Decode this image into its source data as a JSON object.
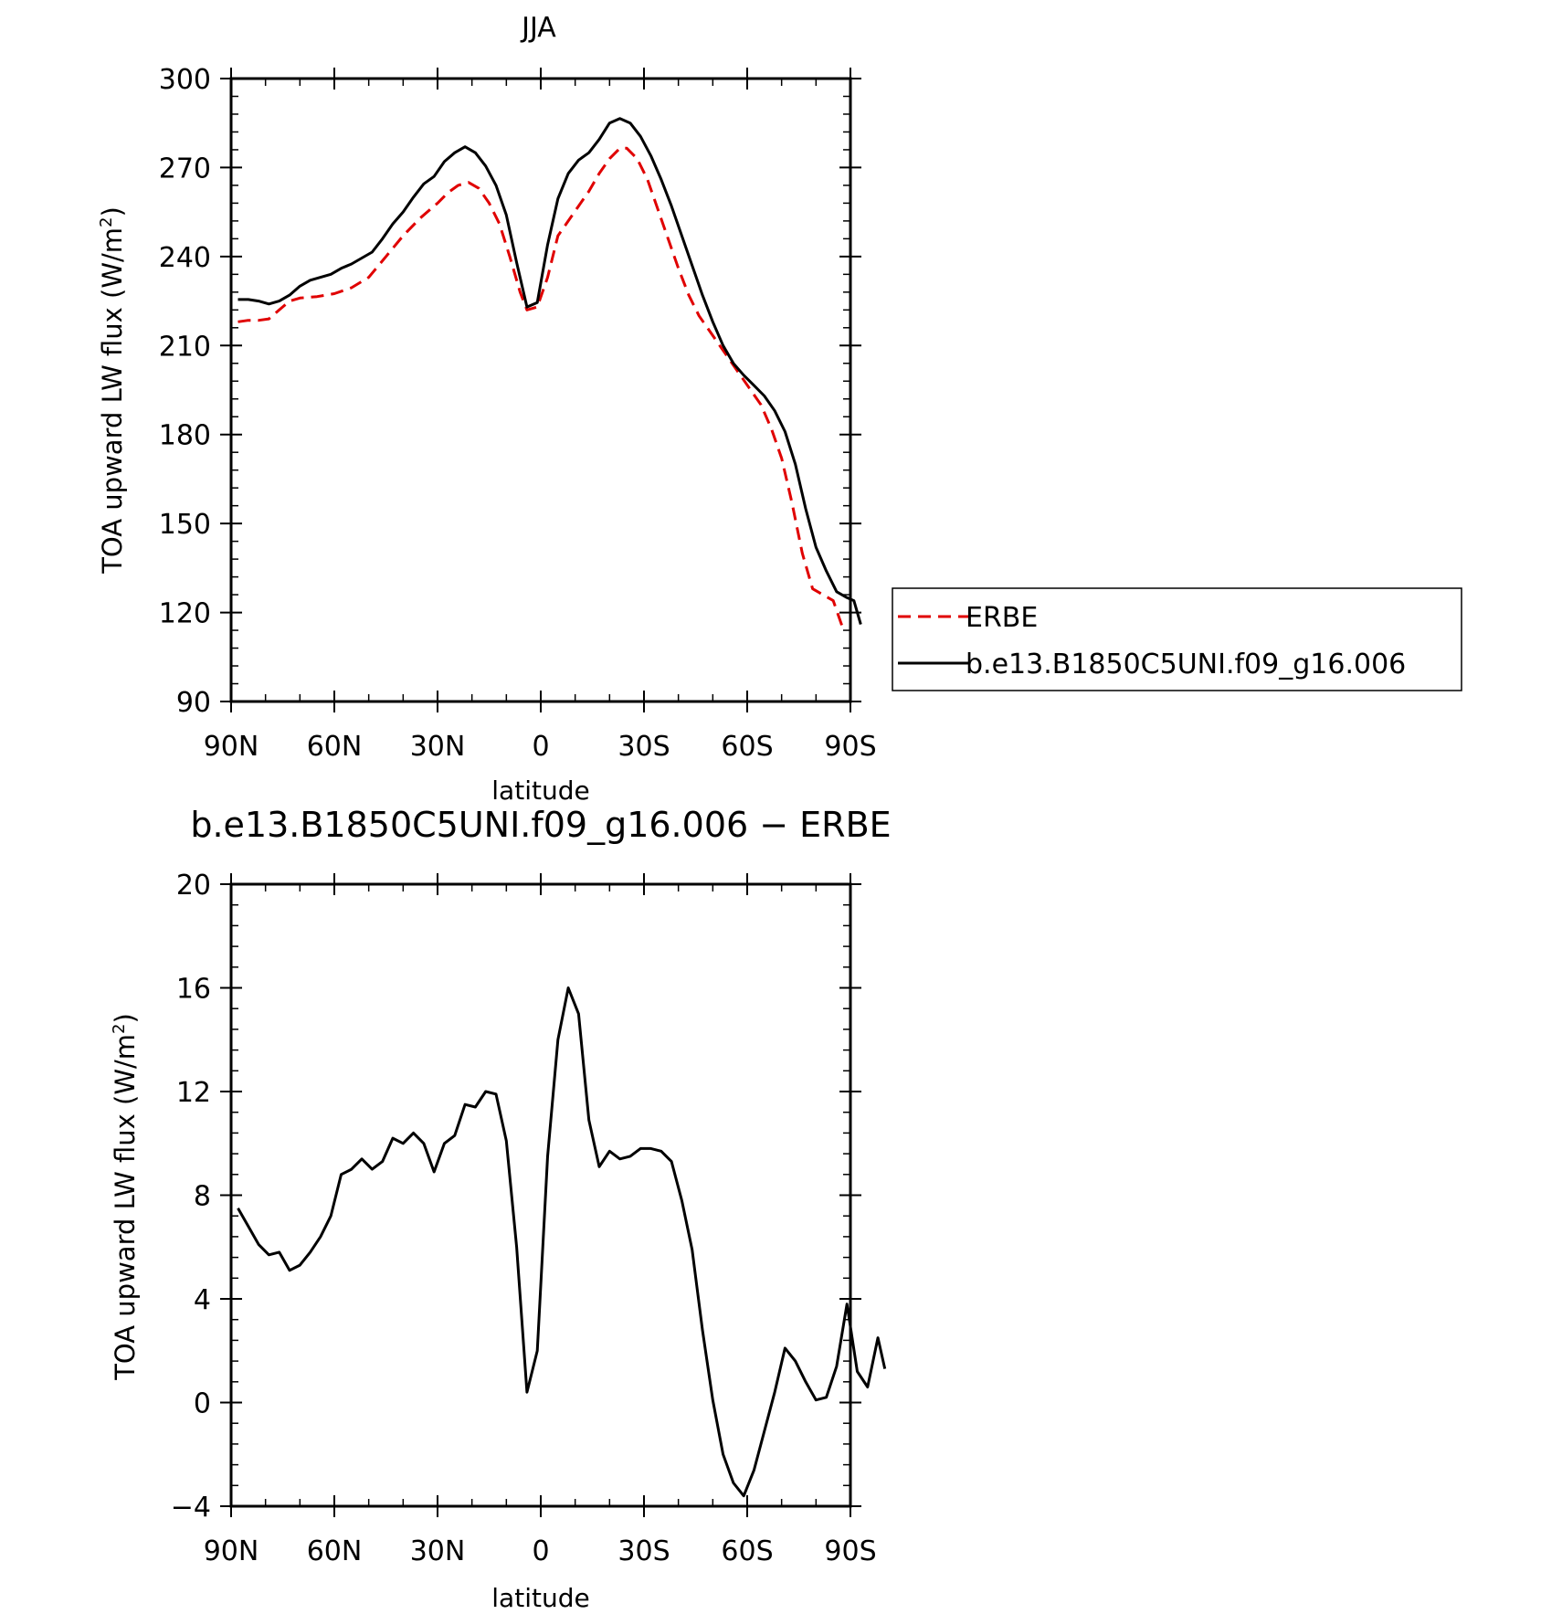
{
  "chart_data": [
    {
      "type": "line",
      "title": "JJA",
      "xlabel": "latitude",
      "ylabel": "TOA upward LW flux (W/m",
      "ylabel_sup": "2",
      "ylabel_end": ")",
      "ylim": [
        90,
        300
      ],
      "yticks": [
        90,
        120,
        150,
        180,
        210,
        240,
        270,
        300
      ],
      "xlim": [
        90,
        -90
      ],
      "xticks": [
        {
          "value": 90,
          "label": "90N"
        },
        {
          "value": 60,
          "label": "60N"
        },
        {
          "value": 30,
          "label": "30N"
        },
        {
          "value": 0,
          "label": "0"
        },
        {
          "value": -30,
          "label": "30S"
        },
        {
          "value": -60,
          "label": "60S"
        },
        {
          "value": -90,
          "label": "90S"
        }
      ],
      "grid": false,
      "legend": {
        "placement": "right"
      },
      "series": [
        {
          "name": "ERBE",
          "color": "#e00000",
          "dash": "dashed",
          "points": [
            [
              88,
              218
            ],
            [
              85,
              218.5
            ],
            [
              82,
              218.5
            ],
            [
              79,
              219
            ],
            [
              76,
              222
            ],
            [
              73,
              225
            ],
            [
              70,
              226
            ],
            [
              65,
              226.5
            ],
            [
              60,
              227.5
            ],
            [
              55,
              229.5
            ],
            [
              50,
              233
            ],
            [
              45,
              240
            ],
            [
              40,
              247
            ],
            [
              35,
              253
            ],
            [
              30,
              258
            ],
            [
              27,
              261.5
            ],
            [
              24,
              264
            ],
            [
              21,
              265
            ],
            [
              18,
              263
            ],
            [
              15,
              258
            ],
            [
              12,
              251
            ],
            [
              9,
              240
            ],
            [
              6,
              228
            ],
            [
              4,
              222
            ],
            [
              1,
              223
            ],
            [
              -2,
              233
            ],
            [
              -5,
              247
            ],
            [
              -8,
              252
            ],
            [
              -11,
              257
            ],
            [
              -14,
              262
            ],
            [
              -17,
              268
            ],
            [
              -20,
              273
            ],
            [
              -23,
              276.5
            ],
            [
              -25,
              276.5
            ],
            [
              -28,
              273
            ],
            [
              -31,
              266
            ],
            [
              -34,
              256
            ],
            [
              -37,
              246
            ],
            [
              -40,
              236
            ],
            [
              -43,
              227
            ],
            [
              -46,
              220
            ],
            [
              -49,
              215
            ],
            [
              -52,
              210
            ],
            [
              -55,
              205
            ],
            [
              -58,
              200
            ],
            [
              -61,
              195
            ],
            [
              -64,
              190
            ],
            [
              -67,
              182
            ],
            [
              -70,
              172
            ],
            [
              -73,
              157
            ],
            [
              -76,
              140
            ],
            [
              -79,
              128
            ],
            [
              -82,
              126
            ],
            [
              -85,
              124
            ],
            [
              -88,
              114
            ]
          ]
        },
        {
          "name": "b.e13.B1850C5UNI.f09_g16.006",
          "color": "#000000",
          "dash": "solid",
          "points": [
            [
              88,
              225.5
            ],
            [
              85,
              225.5
            ],
            [
              82,
              225
            ],
            [
              79,
              224
            ],
            [
              76,
              225
            ],
            [
              73,
              227
            ],
            [
              70,
              230
            ],
            [
              67,
              232
            ],
            [
              64,
              233
            ],
            [
              61,
              234
            ],
            [
              58,
              236
            ],
            [
              55,
              237.5
            ],
            [
              52,
              239.5
            ],
            [
              49,
              241.5
            ],
            [
              46,
              246
            ],
            [
              43,
              251
            ],
            [
              40,
              255
            ],
            [
              37,
              260
            ],
            [
              34,
              264.5
            ],
            [
              31,
              267
            ],
            [
              28,
              272
            ],
            [
              25,
              275
            ],
            [
              22,
              277
            ],
            [
              19,
              275
            ],
            [
              16,
              270.5
            ],
            [
              13,
              264
            ],
            [
              10,
              254
            ],
            [
              7,
              238
            ],
            [
              4,
              223
            ],
            [
              1,
              224.5
            ],
            [
              -2,
              244
            ],
            [
              -5,
              259.5
            ],
            [
              -8,
              268
            ],
            [
              -11,
              272.5
            ],
            [
              -14,
              275
            ],
            [
              -17,
              279.5
            ],
            [
              -20,
              285
            ],
            [
              -23,
              286.5
            ],
            [
              -26,
              285
            ],
            [
              -29,
              280.5
            ],
            [
              -32,
              274
            ],
            [
              -35,
              266
            ],
            [
              -38,
              257
            ],
            [
              -41,
              247
            ],
            [
              -44,
              237
            ],
            [
              -47,
              227
            ],
            [
              -50,
              218
            ],
            [
              -53,
              210
            ],
            [
              -56,
              204
            ],
            [
              -59,
              200
            ],
            [
              -62,
              196.5
            ],
            [
              -65,
              193
            ],
            [
              -68,
              188
            ],
            [
              -71,
              181
            ],
            [
              -74,
              170
            ],
            [
              -77,
              155
            ],
            [
              -80,
              142
            ],
            [
              -83,
              134
            ],
            [
              -86,
              127
            ],
            [
              -89,
              125
            ],
            [
              -91,
              124
            ],
            [
              -93,
              116
            ]
          ]
        }
      ]
    },
    {
      "type": "line",
      "title": "b.e13.B1850C5UNI.f09_g16.006 − ERBE",
      "xlabel": "latitude",
      "ylabel": "TOA upward LW flux (W/m",
      "ylabel_sup": "2",
      "ylabel_end": ")",
      "ylim": [
        -4,
        20
      ],
      "yticks": [
        -4,
        0,
        4,
        8,
        12,
        16,
        20
      ],
      "ytick_labels": [
        "−4",
        "0",
        "4",
        "8",
        "12",
        "16",
        "20"
      ],
      "xlim": [
        90,
        -90
      ],
      "xticks": [
        {
          "value": 90,
          "label": "90N"
        },
        {
          "value": 60,
          "label": "60N"
        },
        {
          "value": 30,
          "label": "30N"
        },
        {
          "value": 0,
          "label": "0"
        },
        {
          "value": -30,
          "label": "30S"
        },
        {
          "value": -60,
          "label": "60S"
        },
        {
          "value": -90,
          "label": "90S"
        }
      ],
      "grid": false,
      "series": [
        {
          "color": "#000000",
          "dash": "solid",
          "points": [
            [
              88,
              7.5
            ],
            [
              85,
              6.8
            ],
            [
              82,
              6.1
            ],
            [
              79,
              5.7
            ],
            [
              76,
              5.8
            ],
            [
              73,
              5.1
            ],
            [
              70,
              5.3
            ],
            [
              67,
              5.8
            ],
            [
              64,
              6.4
            ],
            [
              61,
              7.2
            ],
            [
              58,
              8.8
            ],
            [
              55,
              9.0
            ],
            [
              52,
              9.4
            ],
            [
              49,
              9.0
            ],
            [
              46,
              9.3
            ],
            [
              43,
              10.2
            ],
            [
              40,
              10.0
            ],
            [
              37,
              10.4
            ],
            [
              34,
              10.0
            ],
            [
              31,
              8.9
            ],
            [
              28,
              10.0
            ],
            [
              25,
              10.3
            ],
            [
              22,
              11.5
            ],
            [
              19,
              11.4
            ],
            [
              16,
              12.0
            ],
            [
              13,
              11.9
            ],
            [
              10,
              10.1
            ],
            [
              7,
              6.0
            ],
            [
              4,
              0.4
            ],
            [
              1,
              2.0
            ],
            [
              -2,
              9.5
            ],
            [
              -5,
              14.0
            ],
            [
              -8,
              16.0
            ],
            [
              -11,
              15.0
            ],
            [
              -14,
              10.9
            ],
            [
              -17,
              9.1
            ],
            [
              -20,
              9.7
            ],
            [
              -23,
              9.4
            ],
            [
              -26,
              9.5
            ],
            [
              -29,
              9.8
            ],
            [
              -32,
              9.8
            ],
            [
              -35,
              9.7
            ],
            [
              -38,
              9.3
            ],
            [
              -41,
              7.8
            ],
            [
              -44,
              5.9
            ],
            [
              -47,
              2.8
            ],
            [
              -50,
              0.1
            ],
            [
              -53,
              -2.0
            ],
            [
              -56,
              -3.1
            ],
            [
              -59,
              -3.6
            ],
            [
              -62,
              -2.6
            ],
            [
              -65,
              -1.1
            ],
            [
              -68,
              0.4
            ],
            [
              -71,
              2.1
            ],
            [
              -74,
              1.6
            ],
            [
              -77,
              0.8
            ],
            [
              -80,
              0.1
            ],
            [
              -83,
              0.2
            ],
            [
              -86,
              1.4
            ],
            [
              -89,
              3.8
            ],
            [
              -92,
              1.2
            ],
            [
              -95,
              0.6
            ],
            [
              -98,
              2.5
            ],
            [
              -100,
              1.3
            ]
          ]
        }
      ]
    }
  ]
}
